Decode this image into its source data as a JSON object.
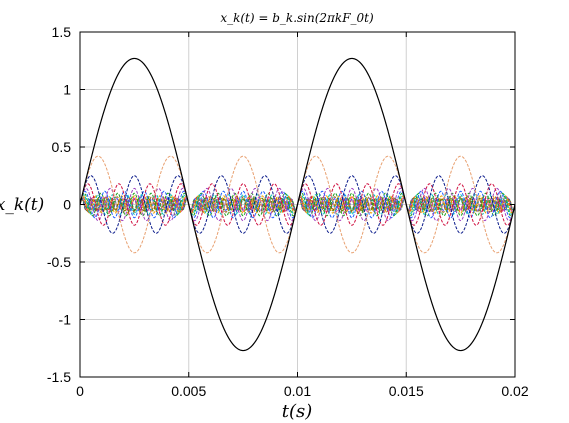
{
  "chart_data": {
    "type": "line",
    "title": "x_k(t) = b_k.sin(2πkF_0t)",
    "xlabel": "t(s)",
    "ylabel": "x_k(t)",
    "xlim": [
      0,
      0.02
    ],
    "ylim": [
      -1.5,
      1.5
    ],
    "x_ticks": [
      "0",
      "0.005",
      "0.01",
      "0.015",
      "0.02"
    ],
    "y_ticks": [
      "1.5",
      "1",
      "0.5",
      "0",
      "-0.5",
      "-1",
      "-1.5"
    ],
    "grid": true,
    "legend": "none",
    "F0_hz": 100,
    "series": [
      {
        "k": 1,
        "amplitude": 1.27,
        "color": "#000000"
      },
      {
        "k": 3,
        "amplitude": 0.42,
        "color": "#e8a070"
      },
      {
        "k": 5,
        "amplitude": 0.25,
        "color": "#0a1a8a"
      },
      {
        "k": 7,
        "amplitude": 0.18,
        "color": "#d01040"
      },
      {
        "k": 9,
        "amplitude": 0.14,
        "color": "#a040c0"
      },
      {
        "k": 11,
        "amplitude": 0.115,
        "color": "#2060ff"
      },
      {
        "k": 13,
        "amplitude": 0.098,
        "color": "#20a020"
      },
      {
        "k": 15,
        "amplitude": 0.085,
        "color": "#00c0c0"
      },
      {
        "k": 17,
        "amplitude": 0.075,
        "color": "#f0a000"
      },
      {
        "k": 19,
        "amplitude": 0.067,
        "color": "#a06020"
      },
      {
        "k": 21,
        "amplitude": 0.061,
        "color": "#ff40a0"
      },
      {
        "k": 23,
        "amplitude": 0.055,
        "color": "#608000"
      },
      {
        "k": 25,
        "amplitude": 0.051,
        "color": "#4040ff"
      },
      {
        "k": 27,
        "amplitude": 0.047,
        "color": "#00a070"
      },
      {
        "k": 29,
        "amplitude": 0.044,
        "color": "#c06000"
      }
    ]
  }
}
